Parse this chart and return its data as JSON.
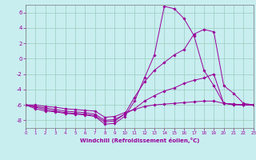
{
  "xlabel": "Windchill (Refroidissement éolien,°C)",
  "ylabel": "",
  "bg_color": "#c8eef0",
  "grid_color": "#99ccbb",
  "line_color": "#990099",
  "xlim": [
    0,
    23
  ],
  "ylim": [
    -9,
    7
  ],
  "yticks": [
    -8,
    -6,
    -4,
    -2,
    0,
    2,
    4,
    6
  ],
  "xticks": [
    0,
    1,
    2,
    3,
    4,
    5,
    6,
    7,
    8,
    9,
    10,
    11,
    12,
    13,
    14,
    15,
    16,
    17,
    18,
    19,
    20,
    21,
    22,
    23
  ],
  "lines": [
    {
      "x": [
        0,
        1,
        2,
        3,
        4,
        5,
        6,
        7,
        8,
        9,
        10,
        11,
        12,
        13,
        14,
        15,
        16,
        17,
        18,
        19,
        20,
        21,
        22,
        23
      ],
      "y": [
        -6.0,
        -6.5,
        -6.8,
        -6.9,
        -7.1,
        -7.2,
        -7.3,
        -7.5,
        -8.5,
        -8.4,
        -7.5,
        -5.5,
        -2.5,
        0.5,
        6.8,
        6.5,
        5.2,
        3.0,
        -1.5,
        -3.5,
        -5.8,
        -6.0,
        -6.0,
        -6.0
      ]
    },
    {
      "x": [
        0,
        1,
        2,
        3,
        4,
        5,
        6,
        7,
        8,
        9,
        10,
        11,
        12,
        13,
        14,
        15,
        16,
        17,
        18,
        19,
        20,
        21,
        22,
        23
      ],
      "y": [
        -6.0,
        -6.3,
        -6.6,
        -6.8,
        -7.0,
        -7.1,
        -7.2,
        -7.4,
        -8.2,
        -8.1,
        -7.2,
        -5.0,
        -3.0,
        -1.5,
        -0.5,
        0.5,
        1.2,
        3.2,
        3.8,
        3.5,
        -3.5,
        -4.5,
        -5.8,
        -6.0
      ]
    },
    {
      "x": [
        0,
        1,
        2,
        3,
        4,
        5,
        6,
        7,
        8,
        9,
        10,
        11,
        12,
        13,
        14,
        15,
        16,
        17,
        18,
        19,
        20,
        21,
        22,
        23
      ],
      "y": [
        -6.0,
        -6.2,
        -6.4,
        -6.6,
        -6.8,
        -6.9,
        -7.0,
        -7.2,
        -8.0,
        -7.9,
        -7.2,
        -6.5,
        -5.5,
        -4.8,
        -4.2,
        -3.8,
        -3.2,
        -2.8,
        -2.5,
        -2.0,
        -5.8,
        -5.9,
        -6.0,
        -6.0
      ]
    },
    {
      "x": [
        0,
        1,
        2,
        3,
        4,
        5,
        6,
        7,
        8,
        9,
        10,
        11,
        12,
        13,
        14,
        15,
        16,
        17,
        18,
        19,
        20,
        21,
        22,
        23
      ],
      "y": [
        -6.0,
        -6.0,
        -6.2,
        -6.3,
        -6.5,
        -6.6,
        -6.7,
        -6.8,
        -7.6,
        -7.5,
        -7.0,
        -6.6,
        -6.2,
        -6.0,
        -5.9,
        -5.8,
        -5.7,
        -5.6,
        -5.5,
        -5.5,
        -5.8,
        -5.9,
        -6.0,
        -6.0
      ]
    }
  ]
}
